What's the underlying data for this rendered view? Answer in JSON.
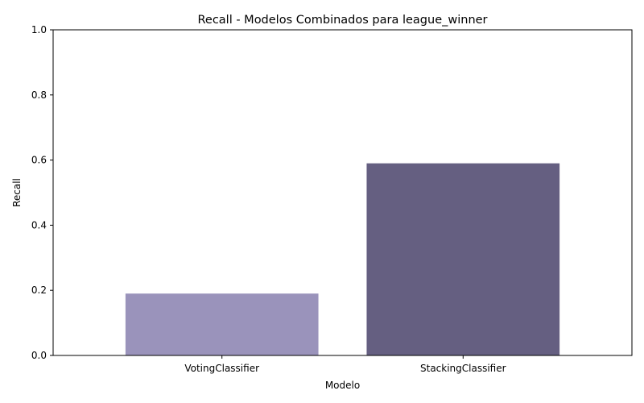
{
  "chart_data": {
    "type": "bar",
    "title": "Recall - Modelos Combinados para league_winner",
    "xlabel": "Modelo",
    "ylabel": "Recall",
    "categories": [
      "VotingClassifier",
      "StackingClassifier"
    ],
    "values": [
      0.19,
      0.59
    ],
    "colors": [
      "#9a93bb",
      "#655f81"
    ],
    "ylim": [
      0,
      1.0
    ],
    "yticks": [
      "0.0",
      "0.2",
      "0.4",
      "0.6",
      "0.8",
      "1.0"
    ],
    "grid": false,
    "legend": "none"
  }
}
